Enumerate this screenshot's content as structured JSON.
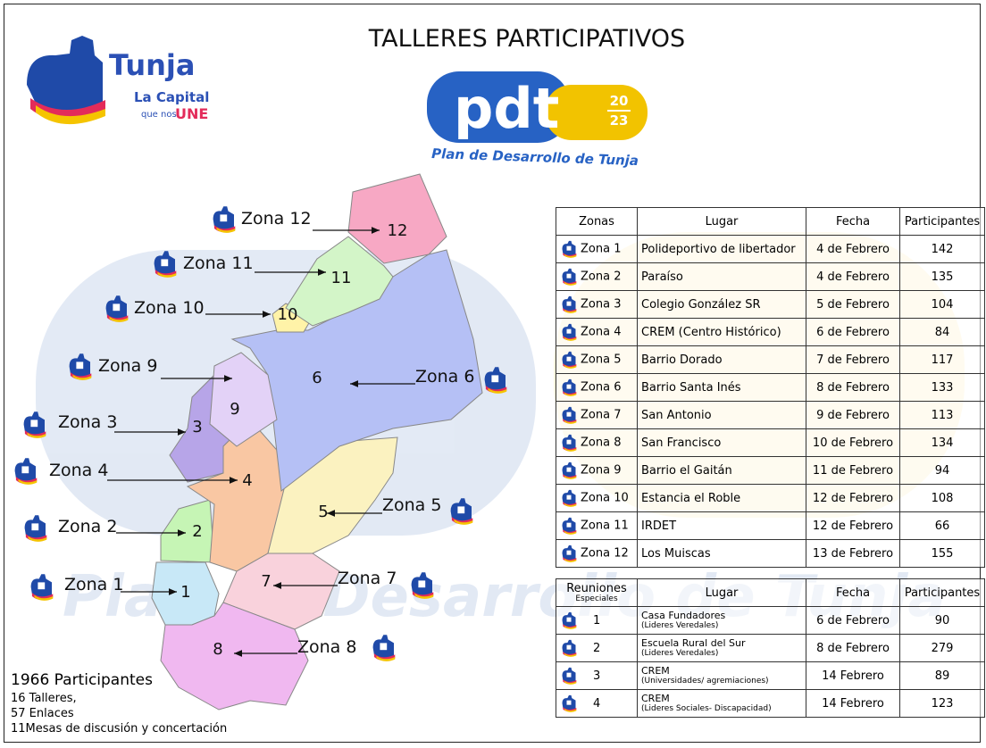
{
  "header": {
    "title": "TALLERES PARTICIPATIVOS",
    "logo": {
      "name": "Tunja",
      "tagline1": "La Capital",
      "tagline2": "que nos",
      "tagline3": "UNE"
    },
    "pdt": {
      "text": "pdt",
      "year_top": "20",
      "year_bottom": "23",
      "subtitle": "Plan de Desarrollo de Tunja"
    }
  },
  "map": {
    "zones": [
      {
        "label": "Zona 1",
        "number": "1"
      },
      {
        "label": "Zona 2",
        "number": "2"
      },
      {
        "label": "Zona 3",
        "number": "3"
      },
      {
        "label": "Zona 4",
        "number": "4"
      },
      {
        "label": "Zona 5",
        "number": "5"
      },
      {
        "label": "Zona 6",
        "number": "6"
      },
      {
        "label": "Zona 7",
        "number": "7"
      },
      {
        "label": "Zona 8",
        "number": "8"
      },
      {
        "label": "Zona 9",
        "number": "9"
      },
      {
        "label": "Zona 10",
        "number": "10"
      },
      {
        "label": "Zona 11",
        "number": "11"
      },
      {
        "label": "Zona 12",
        "number": "12"
      }
    ]
  },
  "table": {
    "columns": [
      "Zonas",
      "Lugar",
      "Fecha",
      "Participantes"
    ],
    "rows": [
      [
        "Zona 1",
        "Polideportivo de libertador",
        "4 de Febrero",
        142
      ],
      [
        "Zona 2",
        "Paraíso",
        "4 de Febrero",
        135
      ],
      [
        "Zona 3",
        "Colegio González SR",
        "5 de Febrero",
        104
      ],
      [
        "Zona 4",
        "CREM (Centro Histórico)",
        "6 de Febrero",
        84
      ],
      [
        "Zona 5",
        "Barrio Dorado",
        "7 de Febrero",
        117
      ],
      [
        "Zona 6",
        "Barrio Santa Inés",
        "8 de Febrero",
        133
      ],
      [
        "Zona 7",
        "San Antonio",
        "9 de Febrero",
        113
      ],
      [
        "Zona 8",
        "San Francisco",
        "10 de Febrero",
        134
      ],
      [
        "Zona 9",
        "Barrio el Gaitán",
        "11 de Febrero",
        94
      ],
      [
        "Zona 10",
        "Estancia el Roble",
        "12 de Febrero",
        108
      ],
      [
        "Zona 11",
        "IRDET",
        "12 de Febrero",
        66
      ],
      [
        "Zona 12",
        "Los Muiscas",
        "13 de Febrero",
        155
      ]
    ]
  },
  "special": {
    "columns": [
      "Reuniones",
      "Lugar",
      "Fecha",
      "Participantes"
    ],
    "columns_sub": "Especiales",
    "rows": [
      {
        "n": "1",
        "place": "Casa Fundadores",
        "note": "(Lideres Veredales)",
        "date": "6 de Febrero",
        "participants": 90
      },
      {
        "n": "2",
        "place": "Escuela Rural del Sur",
        "note": "(Lideres Veredales)",
        "date": "8 de Febrero",
        "participants": 279
      },
      {
        "n": "3",
        "place": "CREM",
        "note": "(Universidades/ agremiaciones)",
        "date": "14  Febrero",
        "participants": 89
      },
      {
        "n": "4",
        "place": "CREM",
        "note": "(Lideres Sociales- Discapacidad)",
        "date": "14  Febrero",
        "participants": 123
      }
    ]
  },
  "summary": [
    "1966 Participantes",
    "16 Talleres,",
    "57 Enlaces",
    "11Mesas de discusión y concertación"
  ]
}
